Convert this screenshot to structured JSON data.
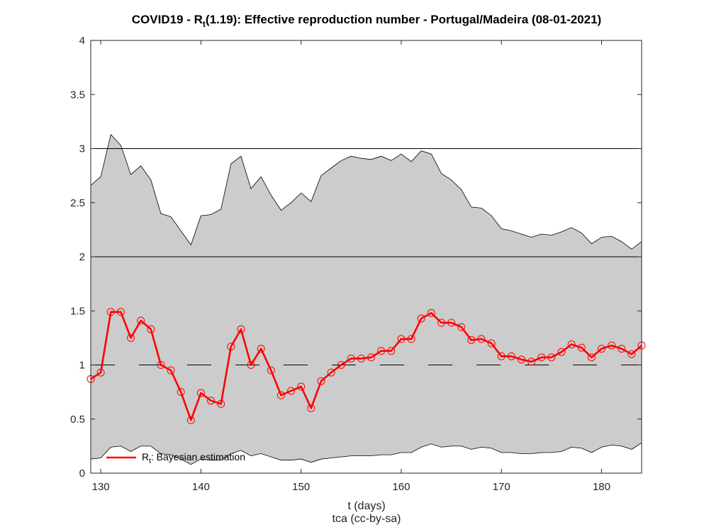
{
  "chart_data": {
    "type": "line",
    "title_prefix": "COVID19 - R",
    "title_sub": "t",
    "title_suffix": "(1.19): Effective reproduction number - Portugal/Madeira (08-01-2021)",
    "xlabel": "t (days)",
    "credit": "tca (cc-by-sa)",
    "xlim": [
      129,
      184
    ],
    "ylim": [
      0,
      4
    ],
    "xticks": [
      130,
      140,
      150,
      160,
      170,
      180
    ],
    "yticks": [
      0,
      0.5,
      1,
      1.5,
      2,
      2.5,
      3,
      3.5,
      4
    ],
    "ytick_labels": [
      "0",
      "0.5",
      "1",
      "1.5",
      "2",
      "2.5",
      "3",
      "3.5",
      "4"
    ],
    "reference_lines": [
      {
        "y": 1,
        "style": "dashed"
      },
      {
        "y": 2,
        "style": "solid"
      },
      {
        "y": 3,
        "style": "solid"
      }
    ],
    "legend": {
      "position": "bottom-left",
      "label_prefix": "R",
      "label_sub": "t",
      "label_suffix": ": Bayesian estimation"
    },
    "colors": {
      "series": "#ff0000",
      "band": "#cccccc",
      "band_edge": "#000000"
    },
    "x": [
      129,
      130,
      131,
      132,
      133,
      134,
      135,
      136,
      137,
      138,
      139,
      140,
      141,
      142,
      143,
      144,
      145,
      146,
      147,
      148,
      149,
      150,
      151,
      152,
      153,
      154,
      155,
      156,
      157,
      158,
      159,
      160,
      161,
      162,
      163,
      164,
      165,
      166,
      167,
      168,
      169,
      170,
      171,
      172,
      173,
      174,
      175,
      176,
      177,
      178,
      179,
      180,
      181,
      182,
      183,
      184
    ],
    "series": [
      {
        "name": "Rt: Bayesian estimation",
        "values": [
          0.87,
          0.93,
          1.49,
          1.49,
          1.25,
          1.41,
          1.33,
          1.0,
          0.95,
          0.75,
          0.49,
          0.74,
          0.67,
          0.64,
          1.17,
          1.33,
          1.0,
          1.15,
          0.95,
          0.72,
          0.76,
          0.8,
          0.6,
          0.85,
          0.93,
          1.0,
          1.06,
          1.06,
          1.07,
          1.13,
          1.13,
          1.24,
          1.24,
          1.43,
          1.48,
          1.39,
          1.39,
          1.35,
          1.23,
          1.24,
          1.2,
          1.08,
          1.08,
          1.05,
          1.03,
          1.07,
          1.07,
          1.12,
          1.19,
          1.16,
          1.07,
          1.15,
          1.18,
          1.15,
          1.1,
          1.18
        ]
      }
    ],
    "band_upper": [
      2.66,
      2.74,
      3.13,
      3.03,
      2.76,
      2.84,
      2.71,
      2.4,
      2.37,
      2.24,
      2.11,
      2.38,
      2.39,
      2.44,
      2.86,
      2.93,
      2.63,
      2.74,
      2.57,
      2.43,
      2.5,
      2.59,
      2.51,
      2.75,
      2.82,
      2.89,
      2.93,
      2.91,
      2.9,
      2.93,
      2.89,
      2.95,
      2.88,
      2.98,
      2.95,
      2.77,
      2.71,
      2.62,
      2.46,
      2.45,
      2.38,
      2.26,
      2.24,
      2.21,
      2.18,
      2.21,
      2.2,
      2.23,
      2.27,
      2.22,
      2.12,
      2.18,
      2.19,
      2.14,
      2.07,
      2.14
    ],
    "band_lower": [
      0.13,
      0.14,
      0.24,
      0.25,
      0.2,
      0.25,
      0.25,
      0.18,
      0.17,
      0.13,
      0.08,
      0.13,
      0.12,
      0.12,
      0.18,
      0.21,
      0.16,
      0.18,
      0.15,
      0.12,
      0.12,
      0.13,
      0.1,
      0.13,
      0.14,
      0.15,
      0.16,
      0.16,
      0.16,
      0.17,
      0.17,
      0.19,
      0.19,
      0.24,
      0.27,
      0.24,
      0.25,
      0.25,
      0.22,
      0.24,
      0.23,
      0.19,
      0.19,
      0.18,
      0.18,
      0.19,
      0.19,
      0.2,
      0.24,
      0.23,
      0.19,
      0.24,
      0.26,
      0.25,
      0.22,
      0.28
    ]
  }
}
